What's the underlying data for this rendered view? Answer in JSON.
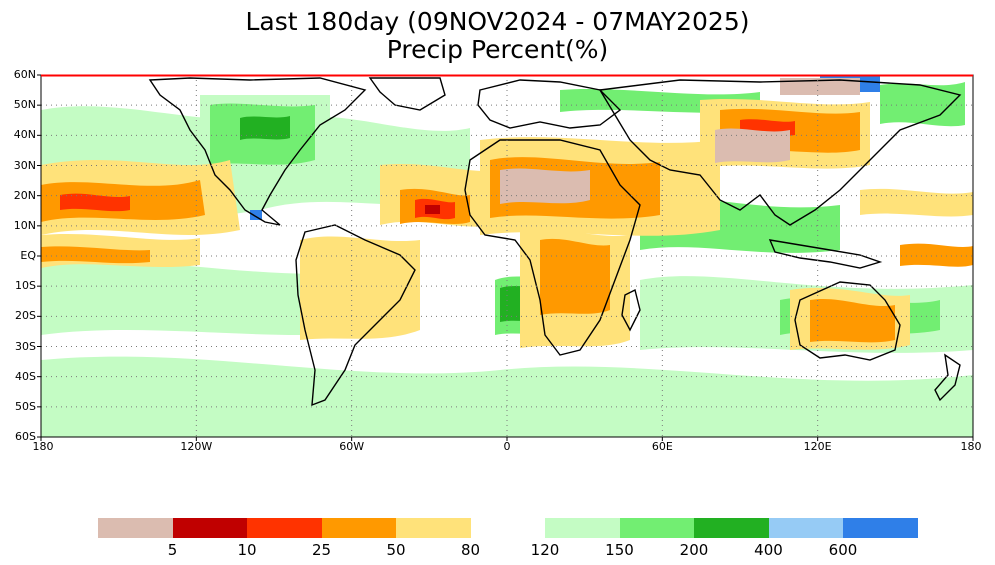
{
  "title": {
    "line1": "Last 180day (09NOV2024 - 07MAY2025)",
    "line2": "Precip Percent(%)"
  },
  "map": {
    "lat_labels": [
      "60N",
      "50N",
      "40N",
      "30N",
      "20N",
      "10N",
      "EQ",
      "10S",
      "20S",
      "30S",
      "40S",
      "50S",
      "60S"
    ],
    "lon_labels": [
      "180",
      "120W",
      "60W",
      "0",
      "60E",
      "120E",
      "180"
    ],
    "frame_color": "#ff0000"
  },
  "legend": {
    "left_colors": [
      "#dbbcb0",
      "#c00000",
      "#ff3300",
      "#ff9900",
      "#ffe27a"
    ],
    "right_colors": [
      "#c4fcc4",
      "#72ee72",
      "#22b022",
      "#96cbf5",
      "#2f7fe8"
    ],
    "labels": [
      "5",
      "10",
      "25",
      "50",
      "80",
      "120",
      "150",
      "200",
      "400",
      "600"
    ]
  }
}
